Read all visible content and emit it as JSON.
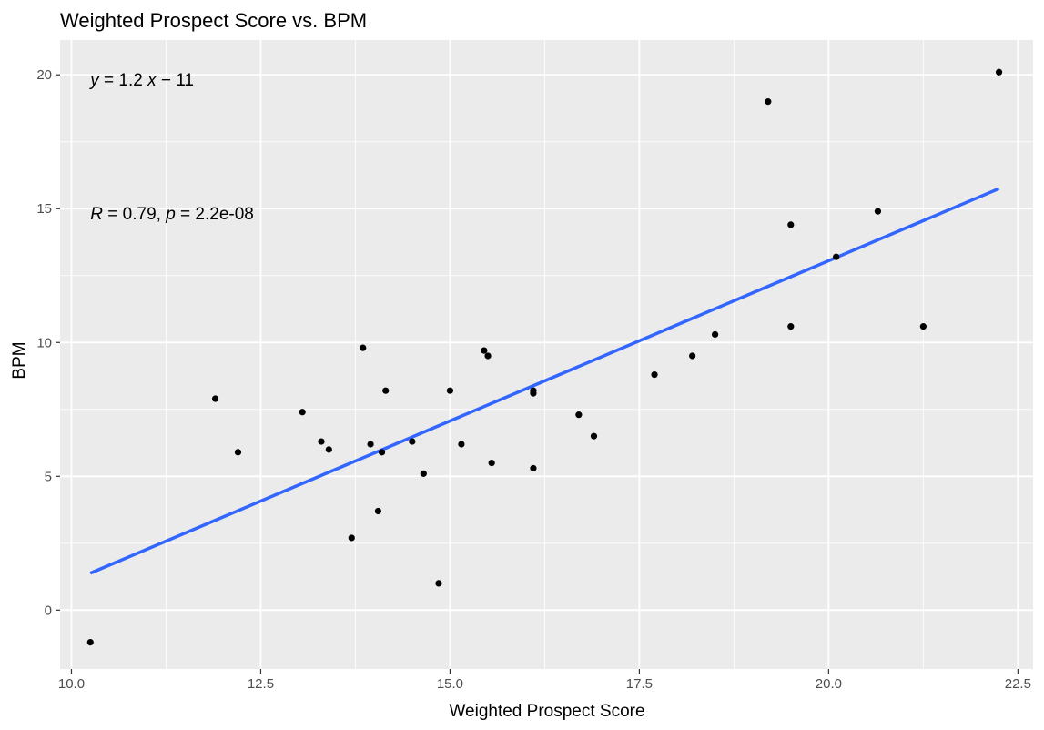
{
  "chart_data": {
    "type": "scatter",
    "title": "Weighted Prospect Score vs. BPM",
    "xlabel": "Weighted Prospect Score",
    "ylabel": "BPM",
    "xlim": [
      9.85,
      22.7
    ],
    "ylim": [
      -2.2,
      21.3
    ],
    "x_ticks": [
      10.0,
      12.5,
      15.0,
      17.5,
      20.0,
      22.5
    ],
    "x_tick_labels": [
      "10.0",
      "12.5",
      "15.0",
      "17.5",
      "20.0",
      "22.5"
    ],
    "y_ticks": [
      0,
      5,
      10,
      15,
      20
    ],
    "y_tick_labels": [
      "0",
      "5",
      "10",
      "15",
      "20"
    ],
    "grid": true,
    "points": [
      {
        "x": 10.25,
        "y": -1.2
      },
      {
        "x": 11.9,
        "y": 7.9
      },
      {
        "x": 12.2,
        "y": 5.9
      },
      {
        "x": 13.05,
        "y": 7.4
      },
      {
        "x": 13.3,
        "y": 6.3
      },
      {
        "x": 13.4,
        "y": 6.0
      },
      {
        "x": 13.7,
        "y": 2.7
      },
      {
        "x": 13.85,
        "y": 9.8
      },
      {
        "x": 13.95,
        "y": 6.2
      },
      {
        "x": 14.05,
        "y": 3.7
      },
      {
        "x": 14.1,
        "y": 5.9
      },
      {
        "x": 14.15,
        "y": 8.2
      },
      {
        "x": 14.5,
        "y": 6.3
      },
      {
        "x": 14.65,
        "y": 5.1
      },
      {
        "x": 14.85,
        "y": 1.0
      },
      {
        "x": 15.0,
        "y": 8.2
      },
      {
        "x": 15.15,
        "y": 6.2
      },
      {
        "x": 15.45,
        "y": 9.7
      },
      {
        "x": 15.5,
        "y": 9.5
      },
      {
        "x": 15.55,
        "y": 5.5
      },
      {
        "x": 16.1,
        "y": 8.2
      },
      {
        "x": 16.1,
        "y": 8.1
      },
      {
        "x": 16.1,
        "y": 5.3
      },
      {
        "x": 16.7,
        "y": 7.3
      },
      {
        "x": 16.9,
        "y": 6.5
      },
      {
        "x": 17.7,
        "y": 8.8
      },
      {
        "x": 18.2,
        "y": 9.5
      },
      {
        "x": 18.5,
        "y": 10.3
      },
      {
        "x": 19.2,
        "y": 19.0
      },
      {
        "x": 19.5,
        "y": 14.4
      },
      {
        "x": 19.5,
        "y": 10.6
      },
      {
        "x": 20.1,
        "y": 13.2
      },
      {
        "x": 20.65,
        "y": 14.9
      },
      {
        "x": 21.25,
        "y": 10.6
      },
      {
        "x": 22.25,
        "y": 20.1
      }
    ],
    "fit_line": {
      "x": [
        10.25,
        22.25
      ],
      "y": [
        1.38,
        15.75
      ],
      "color": "#3366FF"
    },
    "annotations": {
      "equation": {
        "x": 10.25,
        "y": 19.8
      },
      "stats": {
        "x": 10.25,
        "y": 14.8
      }
    },
    "colors": {
      "panel": "#EBEBEB",
      "grid_major": "#FFFFFF",
      "point": "#000000",
      "fit": "#3366FF"
    }
  }
}
